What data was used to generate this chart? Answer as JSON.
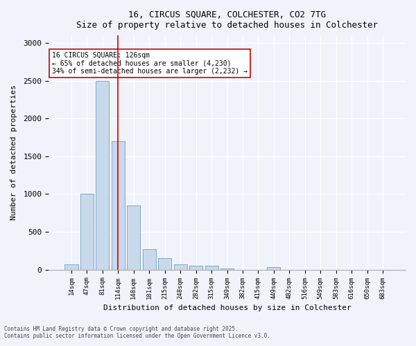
{
  "title1": "16, CIRCUS SQUARE, COLCHESTER, CO2 7TG",
  "title2": "Size of property relative to detached houses in Colchester",
  "xlabel": "Distribution of detached houses by size in Colchester",
  "ylabel": "Number of detached properties",
  "categories": [
    "14sqm",
    "47sqm",
    "81sqm",
    "114sqm",
    "148sqm",
    "181sqm",
    "215sqm",
    "248sqm",
    "282sqm",
    "315sqm",
    "349sqm",
    "382sqm",
    "415sqm",
    "449sqm",
    "482sqm",
    "516sqm",
    "549sqm",
    "583sqm",
    "616sqm",
    "650sqm",
    "683sqm"
  ],
  "values": [
    75,
    1000,
    2500,
    1700,
    850,
    270,
    150,
    70,
    55,
    50,
    20,
    0,
    0,
    30,
    0,
    0,
    0,
    0,
    0,
    0,
    0
  ],
  "bar_color": "#c9d9ec",
  "bar_edge_color": "#5b8db8",
  "vline_x": 3,
  "vline_color": "#cc0000",
  "annotation_text": "16 CIRCUS SQUARE: 126sqm\n← 65% of detached houses are smaller (4,230)\n34% of semi-detached houses are larger (2,232) →",
  "annotation_box_color": "#ffffff",
  "annotation_box_edge_color": "#cc0000",
  "ylim": [
    0,
    3100
  ],
  "yticks": [
    0,
    500,
    1000,
    1500,
    2000,
    2500,
    3000
  ],
  "footer1": "Contains HM Land Registry data © Crown copyright and database right 2025.",
  "footer2": "Contains public sector information licensed under the Open Government Licence v3.0.",
  "bg_color": "#f0f4fa",
  "plot_bg_color": "#f0f4fa"
}
